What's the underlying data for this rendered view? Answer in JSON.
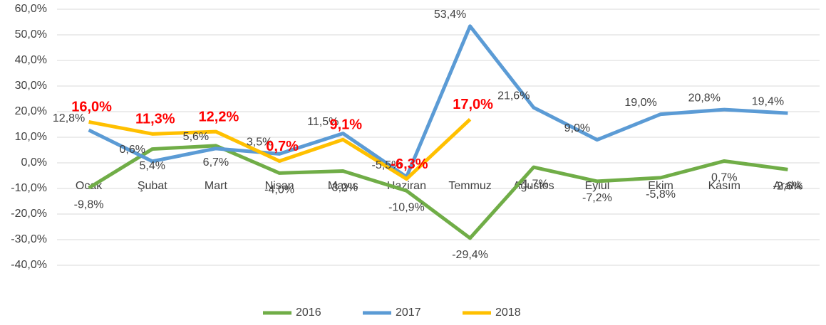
{
  "chart_data": {
    "type": "line",
    "categories": [
      "Ocak",
      "Şubat",
      "Mart",
      "Nisan",
      "Mayıs",
      "Haziran",
      "Temmuz",
      "Ağustos",
      "Eylül",
      "Ekim",
      "Kasım",
      "Aralık"
    ],
    "series": [
      {
        "name": "2016",
        "color": "#70ad47",
        "values": [
          -9.8,
          5.4,
          6.7,
          -4.0,
          -3.2,
          -10.9,
          -29.4,
          -1.7,
          -7.2,
          -5.8,
          0.7,
          -2.6
        ],
        "value_labels": [
          "-9,8%",
          "5,4%",
          "6,7%",
          "-4,0%",
          "-3,2%",
          "-10,9%",
          "-29,4%",
          "-1,7%",
          "-7,2%",
          "-5,8%",
          "0,7%",
          "-2,6%"
        ]
      },
      {
        "name": "2017",
        "color": "#5b9bd5",
        "values": [
          12.8,
          0.6,
          5.6,
          3.5,
          11.5,
          -5.5,
          53.4,
          21.6,
          9.0,
          19.0,
          20.8,
          19.4
        ],
        "value_labels": [
          "12,8%",
          "0,6%",
          "5,6%",
          "3,5%",
          "11,5%",
          "-5,5%",
          "53,4%",
          "21,6%",
          "9,0%",
          "19,0%",
          "20,8%",
          "19,4%"
        ]
      },
      {
        "name": "2018",
        "color": "#ffc000",
        "values": [
          16.0,
          11.3,
          12.2,
          0.7,
          9.1,
          -6.3,
          17.0,
          null,
          null,
          null,
          null,
          null
        ],
        "value_labels": [
          "16,0%",
          "11,3%",
          "12,2%",
          "0,7%",
          "9,1%",
          "-6,3%",
          "17,0%",
          null,
          null,
          null,
          null,
          null
        ]
      }
    ],
    "ylim": [
      -40,
      60
    ],
    "yticks": [
      {
        "value": -40,
        "label": "-40,0%"
      },
      {
        "value": -30,
        "label": "-30,0%"
      },
      {
        "value": -20,
        "label": "-20,0%"
      },
      {
        "value": -10,
        "label": "-10,0%"
      },
      {
        "value": 0,
        "label": "0,0%"
      },
      {
        "value": 10,
        "label": "10,0%"
      },
      {
        "value": 20,
        "label": "20,0%"
      },
      {
        "value": 30,
        "label": "30,0%"
      },
      {
        "value": 40,
        "label": "40,0%"
      },
      {
        "value": 50,
        "label": "50,0%"
      },
      {
        "value": 60,
        "label": "60,0%"
      }
    ],
    "grid": true,
    "legend": "bottom"
  }
}
